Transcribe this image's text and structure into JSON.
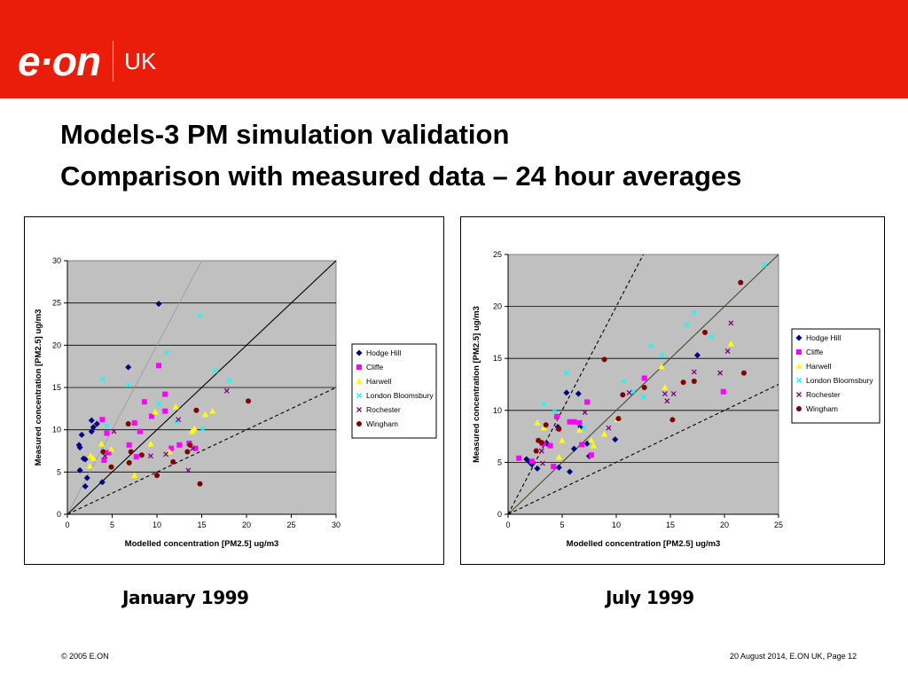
{
  "brand": {
    "logo_text": "e·on",
    "region": "UK",
    "accent": "#ea1c0a"
  },
  "titles": {
    "line1": "Models-3 PM simulation validation",
    "line2": "Comparison with measured data – 24 hour averages"
  },
  "captions": {
    "left": "January 1999",
    "right": "July 1999"
  },
  "footer": {
    "left": "© 2005 E.ON",
    "right": "20 August 2014, E.ON UK, Page 12"
  },
  "legend_styles": [
    {
      "name": "Hodge Hill",
      "marker": "diamond",
      "color": "#000080"
    },
    {
      "name": "Cliffe",
      "marker": "square",
      "color": "#ff00ff"
    },
    {
      "name": "Harwell",
      "marker": "triangle",
      "color": "#ffff00"
    },
    {
      "name": "London Bloomsbury",
      "marker": "x",
      "color": "#00ffff"
    },
    {
      "name": "Rochester",
      "marker": "x",
      "color": "#800080"
    },
    {
      "name": "Wingham",
      "marker": "circle",
      "color": "#800000"
    }
  ],
  "chart_data": [
    {
      "type": "scatter",
      "title": "January 1999",
      "xlabel": "Modelled concentration [PM2.5] ug/m3",
      "ylabel": "Measured concentration [PM2.5] ug/m3",
      "xlim": [
        0,
        30
      ],
      "ylim": [
        0,
        30
      ],
      "xticks": [
        "0",
        "5",
        "10",
        "15",
        "20",
        "25",
        "30"
      ],
      "yticks": [
        "0",
        "5",
        "10",
        "15",
        "20",
        "25",
        "30"
      ],
      "grid": "horizontal",
      "legend_position": "right",
      "reference_lines": [
        {
          "name": "1:1 line",
          "slope": 1,
          "style": "solid",
          "color": "#000000"
        },
        {
          "name": "2:1 line",
          "slope": 2,
          "style": "solid",
          "color": "#999999"
        },
        {
          "name": "1:2 line",
          "slope": 0.5,
          "style": "dashed",
          "color": "#000000"
        }
      ],
      "series": [
        {
          "name": "Hodge Hill",
          "points": [
            [
              1.3,
              8.2
            ],
            [
              1.4,
              7.9
            ],
            [
              1.6,
              9.4
            ],
            [
              2.2,
              4.3
            ],
            [
              1.8,
              6.6
            ],
            [
              2,
              6.5
            ],
            [
              2.7,
              11.1
            ],
            [
              2.9,
              10.3
            ],
            [
              3.9,
              3.8
            ],
            [
              6.8,
              17.4
            ],
            [
              10.2,
              24.9
            ],
            [
              2,
              3.3
            ],
            [
              1.4,
              5.2
            ],
            [
              2.7,
              9.8
            ],
            [
              3.3,
              10.7
            ]
          ]
        },
        {
          "name": "Cliffe",
          "points": [
            [
              3.9,
              11.2
            ],
            [
              4.1,
              6.4
            ],
            [
              4.6,
              7.3
            ],
            [
              6.9,
              8.2
            ],
            [
              7.5,
              10.8
            ],
            [
              8.1,
              9.8
            ],
            [
              8.6,
              13.3
            ],
            [
              9.4,
              11.6
            ],
            [
              10.2,
              17.6
            ],
            [
              10.9,
              14.2
            ],
            [
              10.9,
              12.2
            ],
            [
              11.6,
              7.8
            ],
            [
              12.5,
              8.2
            ],
            [
              13.6,
              8.4
            ],
            [
              14.3,
              7.8
            ],
            [
              7.7,
              6.8
            ],
            [
              4.4,
              9.6
            ]
          ]
        },
        {
          "name": "Harwell",
          "points": [
            [
              2.5,
              5.7
            ],
            [
              2.6,
              6.9
            ],
            [
              2.9,
              6.6
            ],
            [
              3.8,
              8.3
            ],
            [
              4.9,
              7.7
            ],
            [
              7.5,
              4.6
            ],
            [
              9.3,
              8.3
            ],
            [
              9.8,
              12.1
            ],
            [
              11.4,
              7.4
            ],
            [
              12.1,
              12.7
            ],
            [
              13.9,
              9.8
            ],
            [
              14.2,
              10.1
            ],
            [
              15.4,
              11.8
            ],
            [
              16.2,
              12.2
            ]
          ]
        },
        {
          "name": "London Bloomsbury",
          "points": [
            [
              4,
              16
            ],
            [
              4.4,
              10.5
            ],
            [
              6.8,
              15.3
            ],
            [
              11.1,
              19.1
            ],
            [
              10.2,
              13.1
            ],
            [
              14.8,
              23.5
            ],
            [
              16.5,
              17
            ],
            [
              18.1,
              15.8
            ],
            [
              15.1,
              10.1
            ],
            [
              12.2,
              10.9
            ]
          ]
        },
        {
          "name": "Rochester",
          "points": [
            [
              4.2,
              6.9
            ],
            [
              5.2,
              9.8
            ],
            [
              9.3,
              6.9
            ],
            [
              11,
              7.1
            ],
            [
              12.4,
              11.2
            ],
            [
              13.5,
              5.2
            ],
            [
              14,
              7.8
            ],
            [
              17.8,
              14.6
            ]
          ]
        },
        {
          "name": "Wingham",
          "points": [
            [
              4,
              7.4
            ],
            [
              4.9,
              5.6
            ],
            [
              7.1,
              7.4
            ],
            [
              6.9,
              6.1
            ],
            [
              6.8,
              10.7
            ],
            [
              8.3,
              7
            ],
            [
              10,
              4.6
            ],
            [
              11.8,
              6.2
            ],
            [
              13.4,
              7.4
            ],
            [
              13.7,
              8.2
            ],
            [
              14.4,
              12.3
            ],
            [
              14.8,
              3.6
            ],
            [
              20.2,
              13.4
            ]
          ]
        }
      ]
    },
    {
      "type": "scatter",
      "title": "July 1999",
      "xlabel": "Modelled concentration [PM2.5] ug/m3",
      "ylabel": "Measured concentration [PM2.5] ug/m3",
      "xlim": [
        0,
        25
      ],
      "ylim": [
        0,
        25
      ],
      "xticks": [
        "0",
        "5",
        "10",
        "15",
        "20",
        "25"
      ],
      "yticks": [
        "0",
        "5",
        "10",
        "15",
        "20",
        "25"
      ],
      "grid": "horizontal",
      "legend_position": "right",
      "reference_lines": [
        {
          "name": "1:1 line",
          "slope": 1,
          "style": "solid",
          "color": "#4a4a2a"
        },
        {
          "name": "2:1 line",
          "slope": 2,
          "style": "dashed",
          "color": "#000000"
        },
        {
          "name": "1:2 line",
          "slope": 0.5,
          "style": "dashed",
          "color": "#000000"
        }
      ],
      "series": [
        {
          "name": "Hodge Hill",
          "points": [
            [
              1.7,
              5.3
            ],
            [
              2,
              5
            ],
            [
              2.2,
              4.8
            ],
            [
              2.7,
              4.4
            ],
            [
              3.6,
              6.8
            ],
            [
              4.6,
              8.4
            ],
            [
              5.4,
              11.7
            ],
            [
              5.7,
              4.1
            ],
            [
              6.1,
              6.3
            ],
            [
              6.5,
              11.6
            ],
            [
              6.7,
              8.4
            ],
            [
              7.3,
              6.8
            ],
            [
              7.5,
              5.6
            ],
            [
              9.9,
              7.2
            ],
            [
              17.5,
              15.3
            ],
            [
              4.7,
              4.5
            ]
          ]
        },
        {
          "name": "Cliffe",
          "points": [
            [
              1,
              5.4
            ],
            [
              2.2,
              5.1
            ],
            [
              3.2,
              6.8
            ],
            [
              3.9,
              6.6
            ],
            [
              4.2,
              4.6
            ],
            [
              4.5,
              9.4
            ],
            [
              5.7,
              8.9
            ],
            [
              6.1,
              8.9
            ],
            [
              6.6,
              8.8
            ],
            [
              6.8,
              6.7
            ],
            [
              7.3,
              10.8
            ],
            [
              7.7,
              5.7
            ],
            [
              12.6,
              13.1
            ],
            [
              19.9,
              11.8
            ]
          ]
        },
        {
          "name": "Harwell",
          "points": [
            [
              2.7,
              8.8
            ],
            [
              3.3,
              8.3
            ],
            [
              5,
              7.1
            ],
            [
              6.6,
              8.1
            ],
            [
              7.7,
              7.1
            ],
            [
              7.9,
              6.6
            ],
            [
              8.9,
              7.7
            ],
            [
              10.1,
              9.1
            ],
            [
              14.2,
              14.2
            ],
            [
              14.5,
              12.2
            ],
            [
              20.6,
              16.4
            ],
            [
              4.7,
              5.5
            ]
          ]
        },
        {
          "name": "London Bloomsbury",
          "points": [
            [
              3.3,
              10.6
            ],
            [
              4.3,
              9.9
            ],
            [
              5.4,
              13.6
            ],
            [
              7,
              8.4
            ],
            [
              10.7,
              12.8
            ],
            [
              11.6,
              11.8
            ],
            [
              12.5,
              11.3
            ],
            [
              13.2,
              16.2
            ],
            [
              14.2,
              15.3
            ],
            [
              16.5,
              18.2
            ],
            [
              17.2,
              19.4
            ],
            [
              18.8,
              17.1
            ],
            [
              23.7,
              24
            ]
          ]
        },
        {
          "name": "Rochester",
          "points": [
            [
              3.1,
              6.1
            ],
            [
              3.2,
              4.9
            ],
            [
              4.6,
              8.3
            ],
            [
              7.1,
              9.8
            ],
            [
              9.3,
              8.3
            ],
            [
              11.2,
              11.7
            ],
            [
              14.5,
              11.6
            ],
            [
              14.7,
              10.9
            ],
            [
              15.3,
              11.6
            ],
            [
              17.2,
              13.7
            ],
            [
              19.6,
              13.6
            ],
            [
              20.3,
              15.7
            ],
            [
              20.6,
              18.4
            ]
          ]
        },
        {
          "name": "Wingham",
          "points": [
            [
              2.6,
              6.1
            ],
            [
              2.8,
              7.1
            ],
            [
              3.1,
              6.9
            ],
            [
              3.5,
              8.6
            ],
            [
              4.7,
              8.2
            ],
            [
              8.9,
              14.9
            ],
            [
              10.2,
              9.2
            ],
            [
              10.6,
              11.5
            ],
            [
              12.6,
              12.2
            ],
            [
              15.2,
              9.1
            ],
            [
              16.2,
              12.7
            ],
            [
              17.2,
              12.8
            ],
            [
              18.2,
              17.5
            ],
            [
              21.5,
              22.3
            ],
            [
              21.8,
              13.6
            ]
          ]
        }
      ]
    }
  ]
}
